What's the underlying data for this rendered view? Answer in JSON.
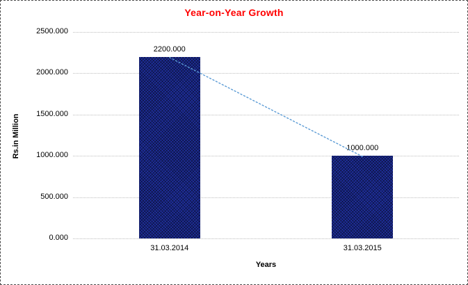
{
  "chart_data": {
    "type": "bar",
    "title": "Year-on-Year Growth",
    "categories": [
      "31.03.2014",
      "31.03.2015"
    ],
    "values": [
      2200,
      1000
    ],
    "data_labels": [
      "2200.000",
      "1000.000"
    ],
    "xlabel": "Years",
    "ylabel": "Rs.in Million",
    "ylim": [
      0,
      2500
    ],
    "ytick_step": 500,
    "ytick_labels": [
      "0.000",
      "500.000",
      "1000.000",
      "1500.000",
      "2000.000",
      "2500.000"
    ],
    "grid": "horizontal-dotted",
    "legend_position": "none",
    "trendline": {
      "style": "dotted",
      "from_category": "31.03.2014",
      "from_value": 2200,
      "to_category": "31.03.2015",
      "to_value": 1000
    }
  },
  "colors": {
    "title": "#ff0000",
    "text": "#000000",
    "bar_fill": "#1f2f9e",
    "bar_pattern": "#05081a",
    "trendline": "#5b9bd5",
    "gridline": "#bdbdbd",
    "border": "#4a4a4a",
    "background": "#ffffff"
  }
}
